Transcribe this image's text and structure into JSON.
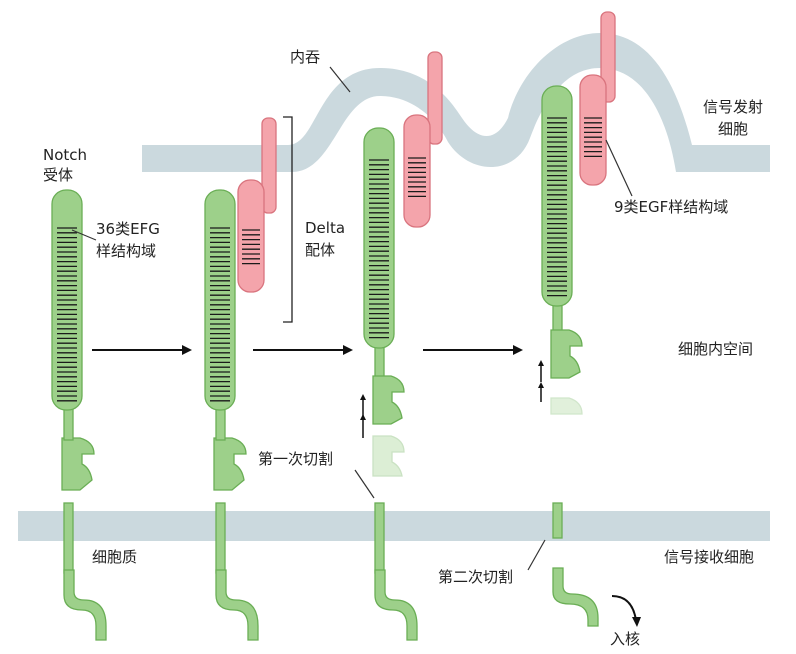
{
  "labels": {
    "notch_receptor": [
      "Notch",
      "受体"
    ],
    "repeats_36": [
      "36类EFG",
      "样结构域"
    ],
    "delta_ligand": [
      "Delta",
      "配体"
    ],
    "endocytosis": "内吞",
    "signal_sending_cell": [
      "信号发射",
      "细胞"
    ],
    "repeats_9": "9类EGF样结构域",
    "intercellular_space": "细胞内空间",
    "first_cleavage": "第一次切割",
    "cytoplasm": "细胞质",
    "second_cleavage": "第二次切割",
    "signal_receiving_cell": "信号接收细胞",
    "to_nucleus": "入核"
  },
  "colors": {
    "receptor_fill": "#9dd08a",
    "receptor_stroke": "#6aae55",
    "ligand_fill": "#f4a4ab",
    "ligand_stroke": "#d9747e",
    "membrane": "#cbd9de",
    "text": "#222222"
  },
  "stages": [
    {
      "stage": 1,
      "ligand_bound": false,
      "cleavage": "none"
    },
    {
      "stage": 2,
      "ligand_bound": true,
      "cleavage": "none"
    },
    {
      "stage": 3,
      "ligand_bound": true,
      "cleavage": "first"
    },
    {
      "stage": 4,
      "ligand_bound": true,
      "cleavage": "second"
    }
  ]
}
